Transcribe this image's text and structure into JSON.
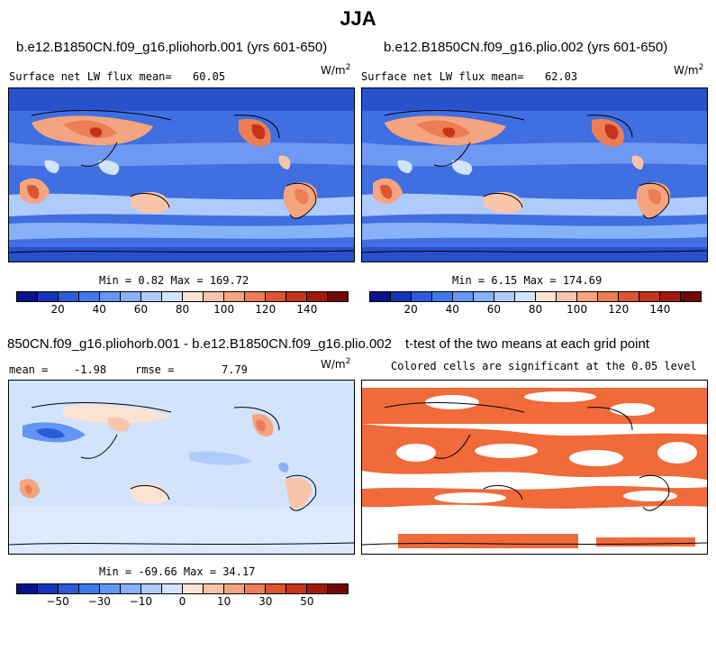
{
  "figure_title": "JJA",
  "panels": {
    "top_left": {
      "title": "b.e12.B1850CN.f09_g16.pliohorb.001 (yrs 601-650)",
      "stat_label": "Surface net LW flux mean=",
      "stat_value": "60.05",
      "unit_base": "W/m",
      "unit_exp": "2",
      "minmax": "Min =   0.82 Max = 169.72"
    },
    "top_right": {
      "title": "b.e12.B1850CN.f09_g16.plio.002 (yrs 601-650)",
      "stat_label": "Surface net LW flux mean=",
      "stat_value": "62.03",
      "unit_base": "W/m",
      "unit_exp": "2",
      "minmax": "Min =   6.15 Max = 174.69"
    },
    "bottom_left": {
      "title": "850CN.f09_g16.pliohorb.001 - b.e12.B1850CN.f09_g16.plio.002",
      "mean_label": "mean =",
      "mean_value": "-1.98",
      "rmse_label": "rmse =",
      "rmse_value": "7.79",
      "unit_base": "W/m",
      "unit_exp": "2",
      "minmax": "Min = -69.66 Max =  34.17"
    },
    "bottom_right": {
      "title": "t-test of the two means at each grid point",
      "subtitle": "Colored cells are significant at the 0.05 level",
      "significant_color": "#f06a3a"
    }
  },
  "colorbars": {
    "absolute": {
      "colors": [
        "#08128a",
        "#1635b9",
        "#2c5ad8",
        "#4179ec",
        "#6396f4",
        "#87b1f8",
        "#aecbfb",
        "#d2e3fc",
        "#fbe3d3",
        "#f8c5aa",
        "#f4a47e",
        "#ec7d55",
        "#db5530",
        "#c43418",
        "#a11a0a",
        "#700808"
      ],
      "ticks": [
        "20",
        "40",
        "60",
        "80",
        "100",
        "120",
        "140"
      ]
    },
    "difference": {
      "colors": [
        "#08128a",
        "#1635b9",
        "#2c5ad8",
        "#4179ec",
        "#6396f4",
        "#87b1f8",
        "#aecbfb",
        "#d2e3fc",
        "#fbe3d3",
        "#f8c5aa",
        "#f4a47e",
        "#ec7d55",
        "#db5530",
        "#c43418",
        "#a11a0a",
        "#700808"
      ],
      "ticks": [
        "−50",
        "−30",
        "−10",
        "0",
        "10",
        "30",
        "50"
      ]
    }
  }
}
